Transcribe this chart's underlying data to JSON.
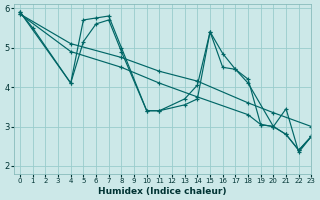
{
  "xlabel": "Humidex (Indice chaleur)",
  "bg_color": "#cce8e8",
  "grid_color": "#99cccc",
  "line_color": "#006666",
  "xlim": [
    -0.5,
    23
  ],
  "ylim": [
    1.8,
    6.1
  ],
  "xticks": [
    0,
    1,
    2,
    3,
    4,
    5,
    6,
    7,
    8,
    9,
    10,
    11,
    12,
    13,
    14,
    15,
    16,
    17,
    18,
    19,
    20,
    21,
    22,
    23
  ],
  "yticks": [
    2,
    3,
    4,
    5,
    6
  ],
  "series": [
    {
      "x": [
        0,
        1,
        4,
        5,
        6,
        7,
        8,
        10,
        11,
        13,
        14,
        15,
        16,
        17,
        18,
        19,
        20,
        21,
        22,
        23
      ],
      "y": [
        5.9,
        5.5,
        4.1,
        5.7,
        5.75,
        5.8,
        5.0,
        3.4,
        3.4,
        3.7,
        4.05,
        5.4,
        4.5,
        4.45,
        4.2,
        3.05,
        3.0,
        2.8,
        2.4,
        2.75
      ]
    },
    {
      "x": [
        0,
        4,
        5,
        6,
        7,
        8,
        10,
        11,
        13,
        14,
        15,
        16,
        17,
        18,
        20,
        21,
        22,
        23
      ],
      "y": [
        5.9,
        4.1,
        5.15,
        5.6,
        5.7,
        4.9,
        3.4,
        3.4,
        3.55,
        3.7,
        5.4,
        4.85,
        4.45,
        4.1,
        3.0,
        3.45,
        2.35,
        2.75
      ]
    },
    {
      "x": [
        0,
        4,
        8,
        11,
        14,
        18,
        20,
        23
      ],
      "y": [
        5.85,
        5.1,
        4.75,
        4.4,
        4.15,
        3.6,
        3.35,
        3.0
      ]
    },
    {
      "x": [
        0,
        4,
        8,
        11,
        14,
        18,
        19,
        20,
        21,
        22,
        23
      ],
      "y": [
        5.85,
        4.9,
        4.5,
        4.1,
        3.75,
        3.3,
        3.05,
        3.0,
        2.8,
        2.4,
        2.75
      ]
    }
  ]
}
